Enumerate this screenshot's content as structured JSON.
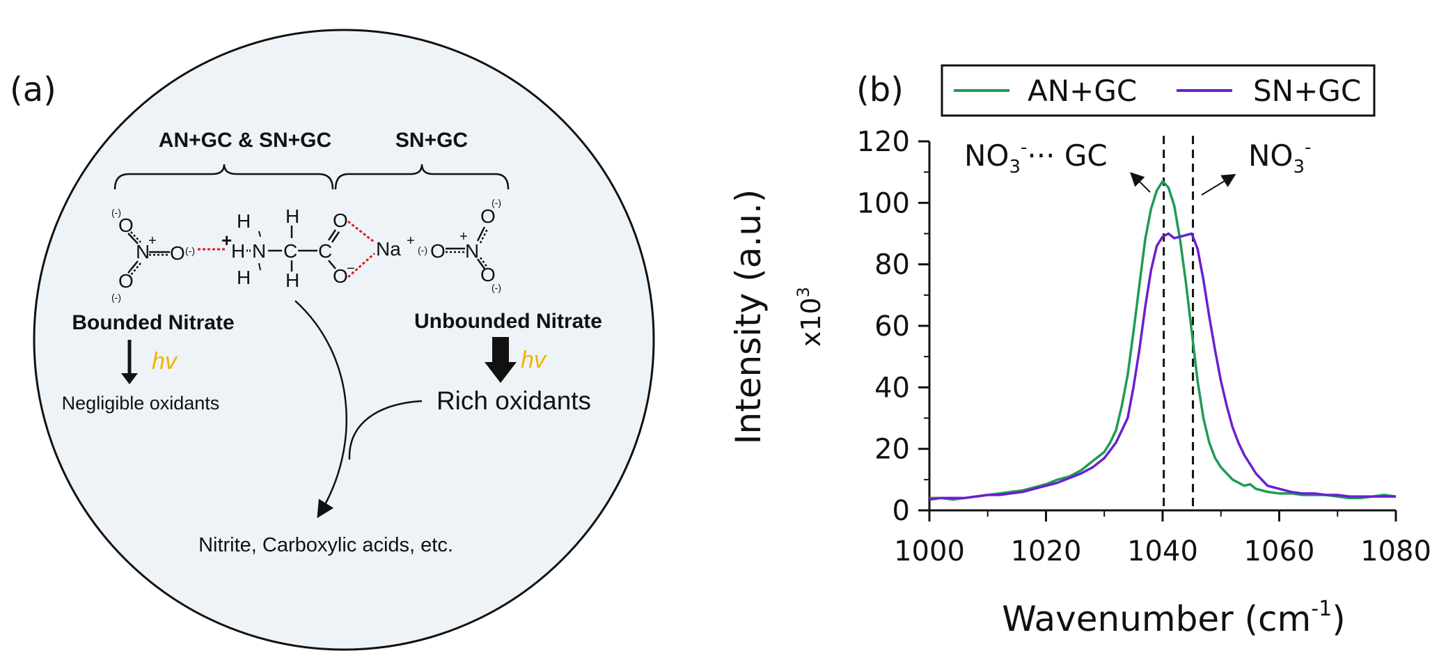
{
  "panel_a": {
    "label": "(a)",
    "brace_left_label": "AN+GC & SN+GC",
    "brace_right_label": "SN+GC",
    "bounded_label": "Bounded Nitrate",
    "unbounded_label": "Unbounded Nitrate",
    "hv_left": "hv",
    "hv_right": "hv",
    "negligible": "Negligible oxidants",
    "rich": "Rich oxidants",
    "products": "Nitrite, Carboxylic acids, etc.",
    "molecule": {
      "n_plus_left": "N",
      "n_charge": "+",
      "o": "O",
      "neg": "(-)",
      "h": "H",
      "n_amine": "N",
      "c": "C",
      "plus": "+",
      "na": "Na",
      "o_minus": "O",
      "minus": "−"
    },
    "colors": {
      "circle_fill": "#eef3f7",
      "hv": "#f2b400",
      "hbond": "#e02020"
    }
  },
  "chart_data": {
    "type": "line",
    "panel_label": "(b)",
    "xlabel": "Wavenumber (cm",
    "xlabel_sup": "-1",
    "xlabel_end": ")",
    "ylabel": "Intensity (a.u.)",
    "ymult": "x10",
    "ymult_sup": "3",
    "xlim": [
      1000,
      1080
    ],
    "ylim": [
      0,
      120
    ],
    "xticks": [
      1000,
      1020,
      1040,
      1060,
      1080
    ],
    "yticks": [
      0,
      20,
      40,
      60,
      80,
      100,
      120
    ],
    "legend_position": "top",
    "vlines": [
      1040.2,
      1045.2
    ],
    "annotations": [
      {
        "base": "NO",
        "sub": "3",
        "sup": "-",
        "tail": "··· GC"
      },
      {
        "base": "NO",
        "sub": "3",
        "sup": "-",
        "tail": ""
      }
    ],
    "series": [
      {
        "name": "AN+GC",
        "color": "#1e9a55",
        "x": [
          1000,
          1002,
          1004,
          1006,
          1008,
          1010,
          1012,
          1014,
          1016,
          1018,
          1020,
          1022,
          1024,
          1026,
          1028,
          1030,
          1031,
          1032,
          1033,
          1034,
          1035,
          1036,
          1037,
          1038,
          1039,
          1040,
          1041,
          1042,
          1043,
          1044,
          1045,
          1046,
          1047,
          1048,
          1049,
          1050,
          1052,
          1054,
          1055,
          1056,
          1058,
          1060,
          1062,
          1064,
          1066,
          1068,
          1070,
          1072,
          1074,
          1076,
          1078,
          1080
        ],
        "y": [
          4,
          4,
          3.5,
          4,
          4.5,
          5,
          5.5,
          6,
          6.5,
          7.5,
          8.5,
          10,
          11,
          13,
          16,
          19,
          22,
          26,
          34,
          44,
          58,
          73,
          88,
          98,
          104,
          107,
          105,
          99,
          88,
          74,
          58,
          42,
          30,
          22,
          17,
          14,
          10,
          8,
          8.5,
          7,
          6,
          5.5,
          5.5,
          5,
          5,
          5,
          4.5,
          4,
          4,
          4.5,
          5,
          4.5
        ]
      },
      {
        "name": "SN+GC",
        "color": "#6a1fd1",
        "x": [
          1000,
          1002,
          1004,
          1006,
          1008,
          1010,
          1012,
          1014,
          1016,
          1018,
          1020,
          1022,
          1024,
          1026,
          1028,
          1030,
          1032,
          1034,
          1035,
          1036,
          1037,
          1038,
          1039,
          1040,
          1041,
          1042,
          1043,
          1044,
          1045,
          1046,
          1047,
          1048,
          1049,
          1050,
          1051,
          1052,
          1053,
          1054,
          1056,
          1058,
          1060,
          1062,
          1064,
          1066,
          1068,
          1070,
          1072,
          1074,
          1076,
          1078,
          1080
        ],
        "y": [
          3.5,
          4,
          4,
          4,
          4.5,
          5,
          5,
          5.5,
          6,
          7,
          8,
          9,
          10.5,
          12,
          14,
          17,
          22,
          30,
          40,
          52,
          66,
          78,
          86,
          89,
          90,
          88.5,
          89,
          89.5,
          90,
          85,
          75,
          63,
          52,
          42,
          34,
          27,
          22,
          18,
          12,
          8,
          7,
          6,
          5.5,
          5.5,
          5,
          5,
          4.5,
          4.5,
          4.5,
          4.5,
          4.5
        ]
      }
    ]
  }
}
